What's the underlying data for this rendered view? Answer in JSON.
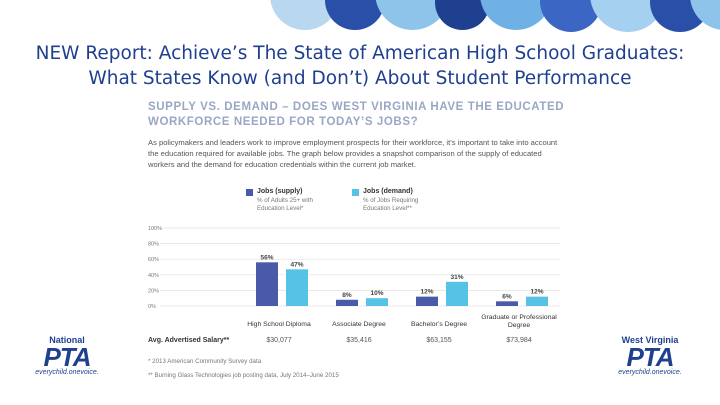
{
  "slide": {
    "title_line1": "NEW Report: Achieve’s The State of American High School Graduates:",
    "title_line2": "What States Know (and Don’t) About Student Performance"
  },
  "panel": {
    "heading_line1": "SUPPLY VS. DEMAND – DOES WEST VIRGINIA HAVE THE EDUCATED",
    "heading_line2": "WORKFORCE NEEDED FOR TODAY’S JOBS?",
    "intro": "As policymakers and leaders work to improve employment prospects for their workforce, it’s important to take into account the education required for available jobs. The graph below provides a snapshot comparison of the supply of educated workers and the demand for education credentials within the current job market.",
    "salary_label": "Avg. Advertised Salary**",
    "salaries": [
      "$30,077",
      "$35,416",
      "$63,155",
      "$73,984"
    ],
    "footnote1": "*    2013 American Community Survey data",
    "footnote2": "**  Burning Glass Technologies job posting data, July 2014–June 2015"
  },
  "logos": {
    "left_small": "National",
    "left_big": "PTA",
    "left_tag": "everychild.onevoice.",
    "right_small": "West Virginia",
    "right_big": "PTA",
    "right_tag": "everychild.onevoice."
  },
  "colors": {
    "supply": "#4a5aa8",
    "demand": "#56c2e6",
    "title": "#1f3f8f"
  },
  "chart_data": {
    "type": "bar",
    "categories": [
      "High School Diploma",
      "Associate Degree",
      "Bachelor’s Degree",
      "Graduate or Professional Degree"
    ],
    "series": [
      {
        "name": "Jobs (supply)",
        "sublabel": "% of Adults 25+ with Education Level*",
        "values": [
          56,
          8,
          12,
          6
        ]
      },
      {
        "name": "Jobs (demand)",
        "sublabel": "% of Jobs Requiring Education Level**",
        "values": [
          47,
          10,
          31,
          12
        ]
      }
    ],
    "data_labels": [
      [
        "56%",
        "8%",
        "12%",
        "6%"
      ],
      [
        "47%",
        "10%",
        "31%",
        "12%"
      ]
    ],
    "y_ticks": [
      "100%",
      "80%",
      "60%",
      "40%",
      "20%",
      "0%"
    ],
    "ylim": [
      0,
      100
    ],
    "grid": true,
    "legend_position": "top"
  }
}
